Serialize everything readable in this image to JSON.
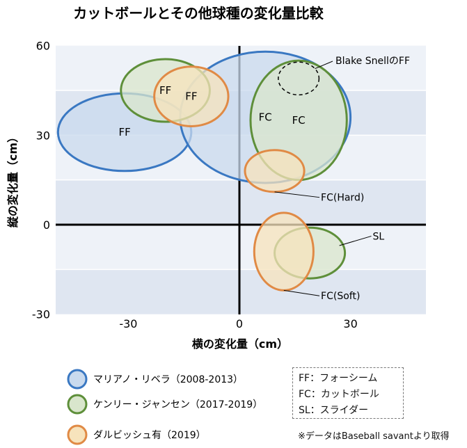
{
  "chart_data": {
    "type": "scatter",
    "title": "カットボールとその他球種の変化量比較",
    "xlabel": "横の変化量（cm）",
    "ylabel": "縦の変化量（cm）",
    "xlim": [
      -50,
      50
    ],
    "ylim": [
      -30,
      60
    ],
    "xticks": [
      "-30",
      "0",
      "30"
    ],
    "yticks": [
      "60",
      "30",
      "0",
      "-30"
    ],
    "grid": "horizontal bands",
    "colors": {
      "rivera": "#3a78c2",
      "jansen": "#5e8f3a",
      "darvish": "#e08a45",
      "rivera_fill": "#c9daee",
      "jansen_fill": "#d9e6cc",
      "darvish_fill": "#f7e3bc",
      "band": "#dfe6f1",
      "band_light": "#eef2f8"
    },
    "ellipses": [
      {
        "series": "rivera",
        "cx": -31,
        "cy": 31,
        "rx": 18,
        "ry": 13,
        "label": "FF"
      },
      {
        "series": "rivera",
        "cx": 7,
        "cy": 36,
        "rx": 23,
        "ry": 22,
        "label": "FC"
      },
      {
        "series": "jansen",
        "cx": -20,
        "cy": 45,
        "rx": 12,
        "ry": 10.5,
        "label": "FF"
      },
      {
        "series": "jansen",
        "cx": 16,
        "cy": 35,
        "rx": 13,
        "ry": 20,
        "label": "FC"
      },
      {
        "series": "jansen",
        "cx": 19,
        "cy": -9.5,
        "rx": 9.5,
        "ry": 8.5,
        "label": ""
      },
      {
        "series": "darvish",
        "cx": -13,
        "cy": 43,
        "rx": 10,
        "ry": 10,
        "label": "FF"
      },
      {
        "series": "darvish",
        "cx": 9.5,
        "cy": 18,
        "rx": 8,
        "ry": 7,
        "label": ""
      },
      {
        "series": "darvish",
        "cx": 12,
        "cy": -9,
        "rx": 8,
        "ry": 13,
        "label": ""
      }
    ],
    "highlight": {
      "cx": 16,
      "cy": 49,
      "rx": 5.5,
      "ry": 5.5,
      "label": "Blake SnellのFF"
    },
    "annotations": [
      {
        "text": "FC(Hard)",
        "x": 9.5,
        "y": 11,
        "tx": 22,
        "ty": 8
      },
      {
        "text": "SL",
        "x": 27,
        "y": -7,
        "tx": 36,
        "ty": -5
      },
      {
        "text": "FC(Soft)",
        "x": 12,
        "y": -22,
        "tx": 22,
        "ty": -25
      }
    ],
    "series": [
      {
        "name": "マリアノ・リベラ（2008-2013）",
        "key": "rivera"
      },
      {
        "name": "ケンリー・ジャンセン（2017-2019）",
        "key": "jansen"
      },
      {
        "name": "ダルビッシュ有（2019）",
        "key": "darvish"
      }
    ]
  },
  "abbrev_legend": [
    "FF：フォーシーム",
    "FC：カットボール",
    "SL：スライダー"
  ],
  "footnote": "※データはBaseball savantより取得"
}
